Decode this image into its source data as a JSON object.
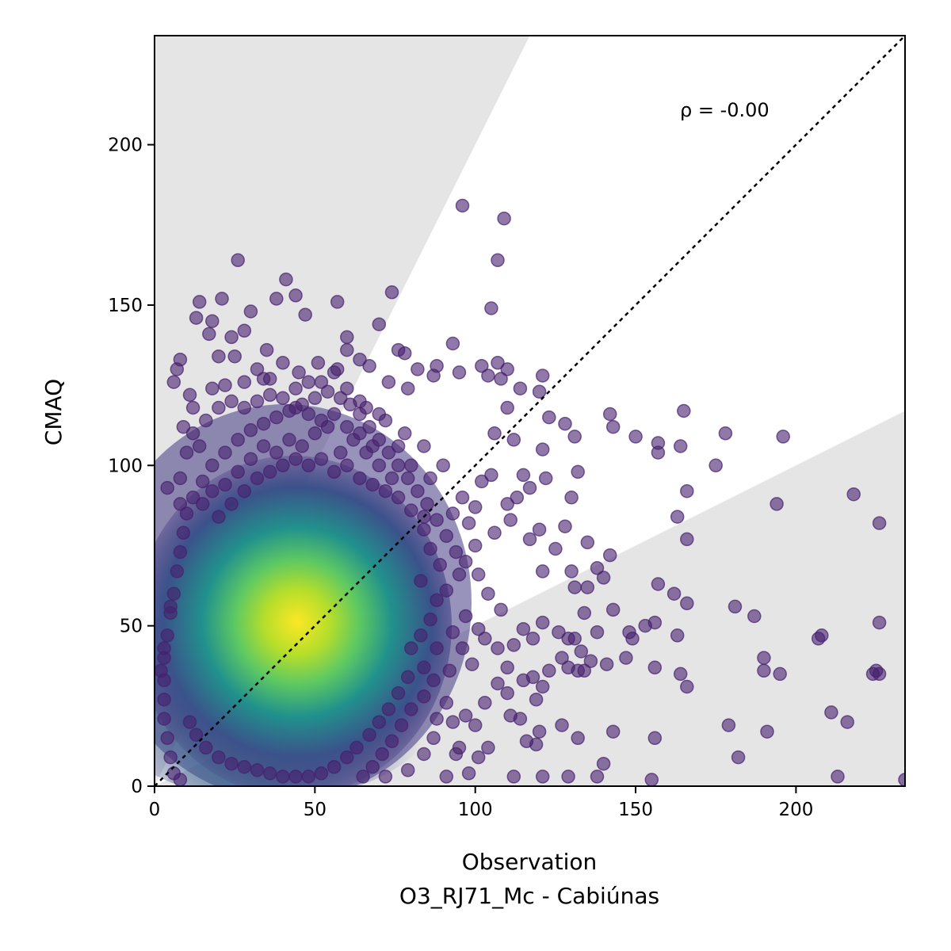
{
  "chart_data": {
    "type": "scatter",
    "title": "",
    "xlabel": "Observation",
    "xlabel_sub": "O3_RJ71_Mc - Cabiúnas",
    "ylabel": "CMAQ",
    "xlim": [
      0,
      234
    ],
    "ylim": [
      0,
      234
    ],
    "xticks": [
      "0",
      "50",
      "100",
      "150",
      "200"
    ],
    "yticks": [
      "0",
      "50",
      "100",
      "150",
      "200"
    ],
    "annotation": "ρ = -0.00",
    "identity_line": true,
    "shaded_regions": "factor-of-2 bounds (y > 2x and y < x/2)",
    "grid": false,
    "colormap": "viridis (point density)",
    "points": [
      [
        96,
        181
      ],
      [
        109,
        177
      ],
      [
        26,
        164
      ],
      [
        107,
        164
      ],
      [
        41,
        158
      ],
      [
        14,
        151
      ],
      [
        21,
        152
      ],
      [
        38,
        152
      ],
      [
        44,
        153
      ],
      [
        57,
        151
      ],
      [
        74,
        154
      ],
      [
        105,
        149
      ],
      [
        13,
        146
      ],
      [
        18,
        145
      ],
      [
        30,
        148
      ],
      [
        47,
        147
      ],
      [
        70,
        144
      ],
      [
        17,
        141
      ],
      [
        24,
        140
      ],
      [
        28,
        142
      ],
      [
        60,
        140
      ],
      [
        35,
        136
      ],
      [
        60,
        136
      ],
      [
        25,
        134
      ],
      [
        40,
        132
      ],
      [
        51,
        132
      ],
      [
        64,
        133
      ],
      [
        76,
        136
      ],
      [
        78,
        135
      ],
      [
        93,
        138
      ],
      [
        8,
        133
      ],
      [
        7,
        130
      ],
      [
        20,
        134
      ],
      [
        32,
        130
      ],
      [
        45,
        129
      ],
      [
        57,
        130
      ],
      [
        67,
        131
      ],
      [
        82,
        130
      ],
      [
        88,
        131
      ],
      [
        102,
        131
      ],
      [
        107,
        132
      ],
      [
        110,
        130
      ],
      [
        121,
        128
      ],
      [
        6,
        126
      ],
      [
        11,
        122
      ],
      [
        22,
        125
      ],
      [
        34,
        127
      ],
      [
        48,
        126
      ],
      [
        56,
        129
      ],
      [
        73,
        126
      ],
      [
        79,
        124
      ],
      [
        87,
        128
      ],
      [
        95,
        129
      ],
      [
        104,
        128
      ],
      [
        108,
        127
      ],
      [
        114,
        124
      ],
      [
        123,
        115
      ],
      [
        120,
        123
      ],
      [
        110,
        118
      ],
      [
        106,
        110
      ],
      [
        112,
        108
      ],
      [
        128,
        113
      ],
      [
        131,
        109
      ],
      [
        142,
        116
      ],
      [
        150,
        109
      ],
      [
        157,
        107
      ],
      [
        165,
        117
      ],
      [
        178,
        110
      ],
      [
        196,
        109
      ],
      [
        157,
        104
      ],
      [
        164,
        106
      ],
      [
        143,
        112
      ],
      [
        121,
        105
      ],
      [
        115,
        97
      ],
      [
        122,
        96
      ],
      [
        132,
        98
      ],
      [
        130,
        90
      ],
      [
        113,
        90
      ],
      [
        117,
        93
      ],
      [
        175,
        100
      ],
      [
        218,
        91
      ],
      [
        166,
        92
      ],
      [
        194,
        88
      ],
      [
        163,
        84
      ],
      [
        120,
        80
      ],
      [
        128,
        81
      ],
      [
        135,
        76
      ],
      [
        142,
        72
      ],
      [
        166,
        77
      ],
      [
        226,
        82
      ],
      [
        117,
        77
      ],
      [
        125,
        74
      ],
      [
        121,
        67
      ],
      [
        130,
        67
      ],
      [
        138,
        68
      ],
      [
        140,
        65
      ],
      [
        135,
        62
      ],
      [
        131,
        62
      ],
      [
        157,
        63
      ],
      [
        162,
        60
      ],
      [
        166,
        57
      ],
      [
        181,
        56
      ],
      [
        187,
        53
      ],
      [
        163,
        47
      ],
      [
        156,
        51
      ],
      [
        153,
        50
      ],
      [
        149,
        46
      ],
      [
        148,
        48
      ],
      [
        143,
        55
      ],
      [
        134,
        54
      ],
      [
        131,
        46
      ],
      [
        133,
        42
      ],
      [
        129,
        46
      ],
      [
        138,
        48
      ],
      [
        136,
        39
      ],
      [
        129,
        37
      ],
      [
        132,
        36
      ],
      [
        134,
        36
      ],
      [
        141,
        38
      ],
      [
        147,
        40
      ],
      [
        156,
        37
      ],
      [
        164,
        35
      ],
      [
        166,
        31
      ],
      [
        190,
        40
      ],
      [
        190,
        36
      ],
      [
        195,
        35
      ],
      [
        208,
        47
      ],
      [
        207,
        46
      ],
      [
        226,
        51
      ],
      [
        225,
        36
      ],
      [
        226,
        35
      ],
      [
        224,
        35
      ],
      [
        179,
        19
      ],
      [
        191,
        17
      ],
      [
        182,
        9
      ],
      [
        211,
        23
      ],
      [
        216,
        20
      ],
      [
        213,
        3
      ],
      [
        234,
        2
      ],
      [
        155,
        2
      ],
      [
        140,
        7
      ],
      [
        143,
        17
      ],
      [
        156,
        15
      ],
      [
        138,
        3
      ],
      [
        129,
        3
      ],
      [
        121,
        3
      ],
      [
        112,
        3
      ],
      [
        127,
        19
      ],
      [
        132,
        15
      ],
      [
        120,
        17
      ],
      [
        119,
        13
      ],
      [
        116,
        14
      ],
      [
        111,
        22
      ],
      [
        119,
        27
      ],
      [
        114,
        21
      ],
      [
        110,
        29
      ],
      [
        107,
        32
      ],
      [
        103,
        26
      ],
      [
        100,
        19
      ],
      [
        104,
        12
      ],
      [
        101,
        9
      ],
      [
        98,
        4
      ],
      [
        94,
        10
      ],
      [
        91,
        3
      ],
      [
        97,
        22
      ],
      [
        95,
        12
      ],
      [
        93,
        20
      ],
      [
        91,
        26
      ],
      [
        99,
        38
      ],
      [
        103,
        46
      ],
      [
        107,
        43
      ],
      [
        110,
        37
      ],
      [
        115,
        33
      ],
      [
        118,
        34
      ],
      [
        121,
        31
      ],
      [
        123,
        36
      ],
      [
        127,
        40
      ],
      [
        126,
        48
      ],
      [
        121,
        51
      ],
      [
        118,
        46
      ],
      [
        115,
        49
      ],
      [
        112,
        44
      ],
      [
        108,
        55
      ],
      [
        104,
        60
      ],
      [
        101,
        66
      ],
      [
        97,
        70
      ],
      [
        94,
        73
      ],
      [
        91,
        78
      ],
      [
        88,
        83
      ],
      [
        85,
        88
      ],
      [
        82,
        92
      ],
      [
        79,
        96
      ],
      [
        76,
        100
      ],
      [
        73,
        104
      ],
      [
        70,
        108
      ],
      [
        67,
        112
      ],
      [
        64,
        116
      ],
      [
        61,
        119
      ],
      [
        58,
        121
      ],
      [
        54,
        123
      ],
      [
        50,
        121
      ],
      [
        46,
        119
      ],
      [
        42,
        117
      ],
      [
        38,
        115
      ],
      [
        34,
        113
      ],
      [
        30,
        111
      ],
      [
        26,
        108
      ],
      [
        22,
        104
      ],
      [
        18,
        100
      ],
      [
        15,
        95
      ],
      [
        12,
        90
      ],
      [
        10,
        85
      ],
      [
        9,
        79
      ],
      [
        8,
        73
      ],
      [
        7,
        67
      ],
      [
        6,
        60
      ],
      [
        5,
        54
      ],
      [
        4,
        47
      ],
      [
        3,
        40
      ],
      [
        3,
        33
      ],
      [
        3,
        27
      ],
      [
        3,
        21
      ],
      [
        4,
        15
      ],
      [
        5,
        9
      ],
      [
        6,
        4
      ],
      [
        8,
        2
      ],
      [
        4,
        93
      ],
      [
        5,
        56
      ],
      [
        3,
        43
      ],
      [
        2,
        36
      ],
      [
        100,
        87
      ],
      [
        102,
        95
      ],
      [
        105,
        97
      ],
      [
        110,
        88
      ],
      [
        106,
        79
      ],
      [
        111,
        83
      ],
      [
        96,
        90
      ],
      [
        98,
        82
      ],
      [
        93,
        85
      ],
      [
        100,
        75
      ],
      [
        95,
        66
      ],
      [
        91,
        61
      ],
      [
        88,
        58
      ],
      [
        89,
        69
      ],
      [
        86,
        74
      ],
      [
        84,
        80
      ],
      [
        83,
        64
      ],
      [
        86,
        52
      ],
      [
        83,
        47
      ],
      [
        80,
        43
      ],
      [
        88,
        43
      ],
      [
        93,
        48
      ],
      [
        97,
        53
      ],
      [
        101,
        49
      ],
      [
        96,
        43
      ],
      [
        92,
        36
      ],
      [
        87,
        33
      ],
      [
        84,
        28
      ],
      [
        80,
        24
      ],
      [
        77,
        19
      ],
      [
        74,
        14
      ],
      [
        71,
        10
      ],
      [
        68,
        6
      ],
      [
        65,
        3
      ],
      [
        72,
        3
      ],
      [
        79,
        5
      ],
      [
        84,
        10
      ],
      [
        87,
        15
      ],
      [
        88,
        21
      ],
      [
        84,
        37
      ],
      [
        79,
        34
      ],
      [
        76,
        29
      ],
      [
        73,
        24
      ],
      [
        70,
        20
      ],
      [
        67,
        16
      ],
      [
        63,
        12
      ],
      [
        60,
        9
      ],
      [
        56,
        6
      ],
      [
        52,
        4
      ],
      [
        48,
        3
      ],
      [
        44,
        3
      ],
      [
        40,
        3
      ],
      [
        36,
        4
      ],
      [
        32,
        5
      ],
      [
        28,
        6
      ],
      [
        24,
        7
      ],
      [
        20,
        9
      ],
      [
        16,
        12
      ],
      [
        13,
        16
      ],
      [
        11,
        20
      ],
      [
        62,
        108
      ],
      [
        58,
        104
      ],
      [
        54,
        112
      ],
      [
        50,
        110
      ],
      [
        46,
        106
      ],
      [
        42,
        108
      ],
      [
        38,
        104
      ],
      [
        34,
        106
      ],
      [
        30,
        102
      ],
      [
        26,
        98
      ],
      [
        22,
        94
      ],
      [
        18,
        92
      ],
      [
        15,
        88
      ],
      [
        20,
        84
      ],
      [
        24,
        88
      ],
      [
        28,
        92
      ],
      [
        32,
        96
      ],
      [
        36,
        98
      ],
      [
        40,
        100
      ],
      [
        44,
        102
      ],
      [
        48,
        100
      ],
      [
        52,
        102
      ],
      [
        56,
        98
      ],
      [
        60,
        100
      ],
      [
        64,
        96
      ],
      [
        68,
        94
      ],
      [
        72,
        92
      ],
      [
        76,
        90
      ],
      [
        80,
        86
      ],
      [
        84,
        84
      ],
      [
        70,
        100
      ],
      [
        74,
        96
      ],
      [
        66,
        104
      ],
      [
        12,
        110
      ],
      [
        16,
        114
      ],
      [
        20,
        118
      ],
      [
        24,
        120
      ],
      [
        28,
        118
      ],
      [
        32,
        120
      ],
      [
        36,
        122
      ],
      [
        40,
        121
      ],
      [
        44,
        118
      ],
      [
        48,
        116
      ],
      [
        52,
        114
      ],
      [
        56,
        116
      ],
      [
        60,
        112
      ],
      [
        64,
        110
      ],
      [
        68,
        106
      ],
      [
        10,
        104
      ],
      [
        14,
        106
      ],
      [
        8,
        96
      ],
      [
        8,
        88
      ],
      [
        9,
        112
      ],
      [
        12,
        118
      ],
      [
        18,
        124
      ],
      [
        28,
        126
      ],
      [
        36,
        127
      ],
      [
        44,
        124
      ],
      [
        52,
        126
      ],
      [
        60,
        124
      ],
      [
        66,
        118
      ],
      [
        72,
        114
      ],
      [
        78,
        110
      ],
      [
        84,
        106
      ],
      [
        90,
        100
      ],
      [
        86,
        96
      ],
      [
        80,
        100
      ],
      [
        76,
        106
      ],
      [
        70,
        116
      ],
      [
        64,
        120
      ]
    ]
  }
}
